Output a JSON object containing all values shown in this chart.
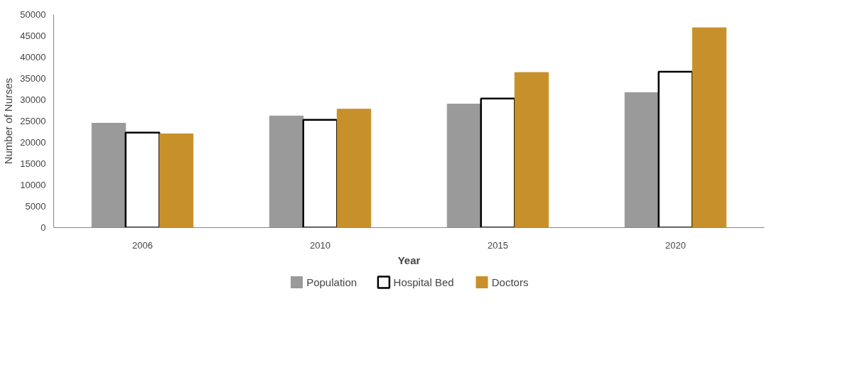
{
  "chart_data": {
    "type": "bar",
    "xlabel": "Year",
    "ylabel": "Number of Nurses",
    "categories": [
      "2006",
      "2010",
      "2015",
      "2020"
    ],
    "series": [
      {
        "name": "Population",
        "color": "#9a9a9a",
        "values": [
          24500,
          26200,
          29000,
          31700
        ]
      },
      {
        "name": "Hospital Bed",
        "color": "#ffffff",
        "values": [
          22300,
          25300,
          30300,
          36600
        ]
      },
      {
        "name": "Doctors",
        "color": "#c8902a",
        "values": [
          22000,
          27800,
          36400,
          46900
        ]
      }
    ],
    "ylim": [
      0,
      50000
    ],
    "yticks": [
      0,
      5000,
      10000,
      15000,
      20000,
      25000,
      30000,
      35000,
      40000,
      45000,
      50000
    ],
    "grid": false,
    "legend": "bottom"
  }
}
